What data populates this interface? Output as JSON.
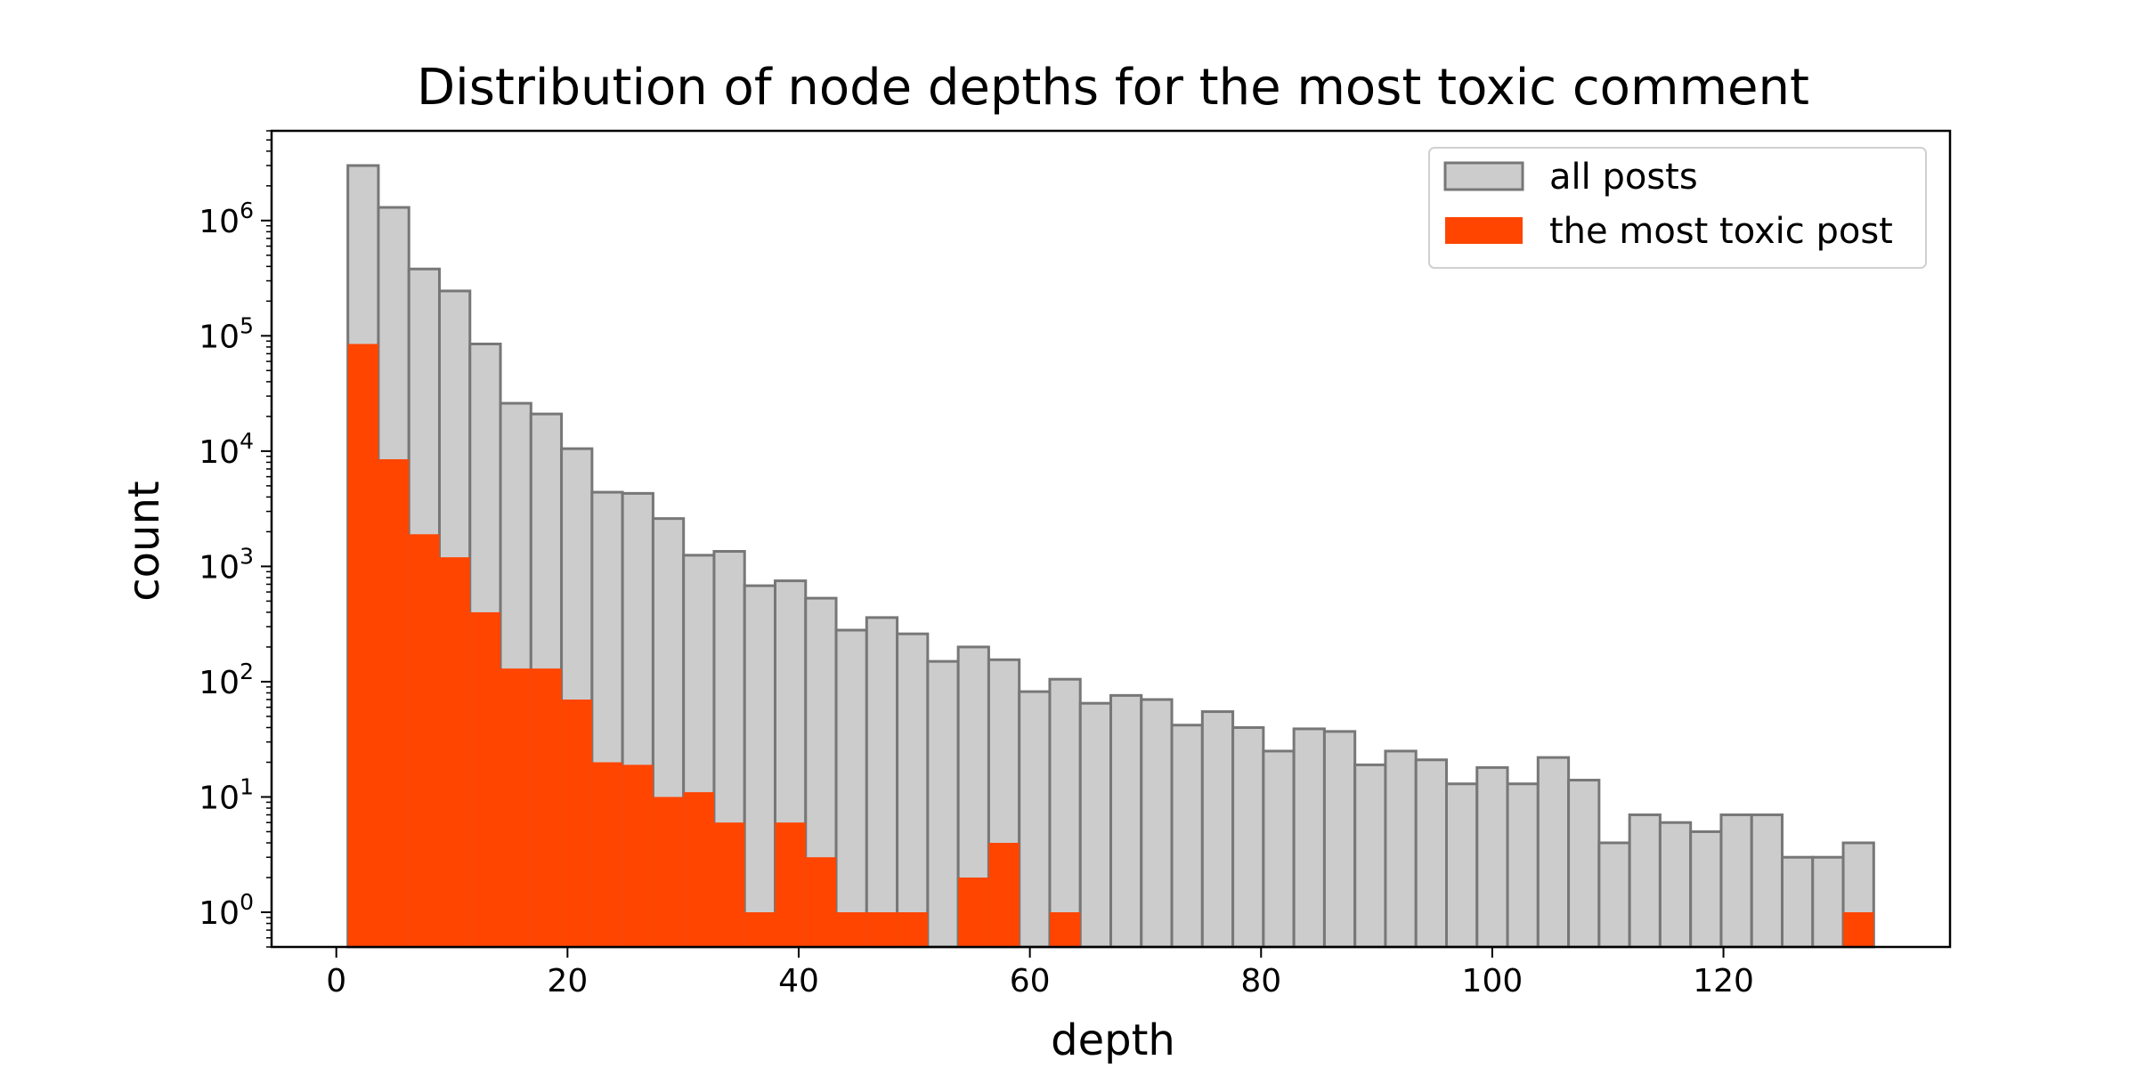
{
  "chart_data": {
    "type": "bar",
    "title": "Distribution of node depths for the most toxic comment",
    "xlabel": "depth",
    "ylabel": "count",
    "y_scale": "log",
    "xlim": [
      -5.6,
      139.6
    ],
    "ylim": [
      0.5,
      6000000
    ],
    "x_ticks": [
      0,
      20,
      40,
      60,
      80,
      100,
      120
    ],
    "y_ticks": [
      1,
      10,
      100,
      1000,
      10000,
      100000,
      1000000
    ],
    "y_tick_labels": [
      "10^0",
      "10^1",
      "10^2",
      "10^3",
      "10^4",
      "10^5",
      "10^6"
    ],
    "bin_start": 1,
    "bin_width": 2.64,
    "legend_position": "top-right",
    "grid": false,
    "series": [
      {
        "name": "all posts",
        "color": "#cccccc",
        "edgecolor": "#777777",
        "values": [
          3000000,
          1300000,
          380000,
          245000,
          85000,
          26000,
          21000,
          10500,
          4400,
          4300,
          2600,
          1250,
          1350,
          680,
          750,
          530,
          280,
          360,
          260,
          150,
          200,
          155,
          82,
          105,
          65,
          76,
          70,
          42,
          55,
          40,
          25,
          39,
          37,
          19,
          25,
          21,
          13,
          18,
          13,
          22,
          14,
          4,
          7,
          6,
          5,
          7,
          7,
          3,
          3,
          4
        ]
      },
      {
        "name": "the most toxic post",
        "color": "#ff4500",
        "values": [
          85000,
          8500,
          1900,
          1200,
          400,
          130,
          130,
          70,
          20,
          19,
          10,
          11,
          6,
          1,
          6,
          3,
          1,
          1,
          1,
          0,
          2,
          4,
          0,
          1,
          0,
          0,
          0,
          0,
          0,
          0,
          0,
          0,
          0,
          0,
          0,
          0,
          0,
          0,
          0,
          0,
          0,
          0,
          0,
          0,
          0,
          0,
          0,
          0,
          0,
          1
        ]
      }
    ]
  }
}
